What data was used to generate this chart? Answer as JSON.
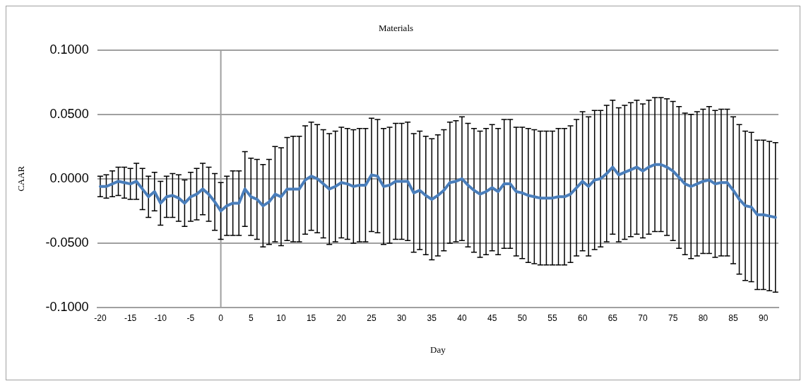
{
  "chart_data": {
    "type": "line",
    "title": "Materials",
    "xlabel": "Day",
    "ylabel": "CAAR",
    "x": [
      -20,
      -19,
      -18,
      -17,
      -16,
      -15,
      -14,
      -13,
      -12,
      -11,
      -10,
      -9,
      -8,
      -7,
      -6,
      -5,
      -4,
      -3,
      -2,
      -1,
      0,
      1,
      2,
      3,
      4,
      5,
      6,
      7,
      8,
      9,
      10,
      11,
      12,
      13,
      14,
      15,
      16,
      17,
      18,
      19,
      20,
      21,
      22,
      23,
      24,
      25,
      26,
      27,
      28,
      29,
      30,
      31,
      32,
      33,
      34,
      35,
      36,
      37,
      38,
      39,
      40,
      41,
      42,
      43,
      44,
      45,
      46,
      47,
      48,
      49,
      50,
      51,
      52,
      53,
      54,
      55,
      56,
      57,
      58,
      59,
      60,
      61,
      62,
      63,
      64,
      65,
      66,
      67,
      68,
      69,
      70,
      71,
      72,
      73,
      74,
      75,
      76,
      77,
      78,
      79,
      80,
      81,
      82,
      83,
      84,
      85,
      86,
      87,
      88,
      89,
      90,
      91,
      92
    ],
    "series": [
      {
        "color": "#4a7ebb",
        "values": [
          -0.006,
          -0.006,
          -0.004,
          -0.002,
          -0.003,
          -0.004,
          -0.002,
          -0.008,
          -0.014,
          -0.01,
          -0.019,
          -0.014,
          -0.013,
          -0.015,
          -0.019,
          -0.014,
          -0.012,
          -0.008,
          -0.012,
          -0.018,
          -0.025,
          -0.021,
          -0.019,
          -0.019,
          -0.008,
          -0.014,
          -0.016,
          -0.021,
          -0.018,
          -0.012,
          -0.014,
          -0.008,
          -0.008,
          -0.008,
          -0.001,
          0.002,
          0.0,
          -0.004,
          -0.008,
          -0.006,
          -0.003,
          -0.004,
          -0.006,
          -0.005,
          -0.005,
          0.003,
          0.002,
          -0.006,
          -0.005,
          -0.002,
          -0.002,
          -0.002,
          -0.011,
          -0.009,
          -0.013,
          -0.016,
          -0.013,
          -0.009,
          -0.003,
          -0.002,
          0.0,
          -0.005,
          -0.009,
          -0.012,
          -0.01,
          -0.007,
          -0.01,
          -0.004,
          -0.004,
          -0.01,
          -0.011,
          -0.013,
          -0.014,
          -0.015,
          -0.015,
          -0.015,
          -0.014,
          -0.014,
          -0.012,
          -0.007,
          -0.002,
          -0.006,
          -0.001,
          0.0,
          0.004,
          0.009,
          0.003,
          0.005,
          0.007,
          0.009,
          0.006,
          0.009,
          0.011,
          0.011,
          0.009,
          0.006,
          0.001,
          -0.004,
          -0.006,
          -0.004,
          -0.002,
          -0.001,
          -0.004,
          -0.003,
          -0.003,
          -0.009,
          -0.016,
          -0.021,
          -0.022,
          -0.028,
          -0.028,
          -0.029,
          -0.03
        ],
        "errors": [
          0.008,
          0.009,
          0.01,
          0.011,
          0.012,
          0.012,
          0.014,
          0.016,
          0.016,
          0.015,
          0.017,
          0.016,
          0.017,
          0.018,
          0.018,
          0.019,
          0.02,
          0.02,
          0.021,
          0.022,
          0.022,
          0.023,
          0.025,
          0.025,
          0.029,
          0.03,
          0.031,
          0.032,
          0.033,
          0.037,
          0.038,
          0.04,
          0.041,
          0.041,
          0.042,
          0.042,
          0.042,
          0.042,
          0.043,
          0.043,
          0.043,
          0.043,
          0.044,
          0.044,
          0.044,
          0.044,
          0.044,
          0.045,
          0.045,
          0.045,
          0.045,
          0.046,
          0.046,
          0.046,
          0.046,
          0.047,
          0.047,
          0.047,
          0.047,
          0.047,
          0.048,
          0.048,
          0.048,
          0.049,
          0.049,
          0.049,
          0.049,
          0.05,
          0.05,
          0.05,
          0.051,
          0.052,
          0.052,
          0.052,
          0.052,
          0.052,
          0.053,
          0.053,
          0.053,
          0.053,
          0.054,
          0.054,
          0.054,
          0.053,
          0.053,
          0.052,
          0.052,
          0.052,
          0.052,
          0.052,
          0.052,
          0.052,
          0.052,
          0.052,
          0.053,
          0.054,
          0.055,
          0.055,
          0.056,
          0.056,
          0.056,
          0.057,
          0.057,
          0.057,
          0.057,
          0.057,
          0.058,
          0.058,
          0.058,
          0.058,
          0.058,
          0.058,
          0.058
        ]
      }
    ],
    "xlim": [
      -20.5,
      92.5
    ],
    "xticks": [
      -20,
      -15,
      -10,
      -5,
      0,
      5,
      10,
      15,
      20,
      25,
      30,
      35,
      40,
      45,
      50,
      55,
      60,
      65,
      70,
      75,
      80,
      85,
      90
    ],
    "ylim": [
      -0.1,
      0.1
    ],
    "yticks": [
      {
        "value": -0.1,
        "label": "-0.1000"
      },
      {
        "value": -0.05,
        "label": "-0.0500"
      },
      {
        "value": 0,
        "label": "0.0000"
      },
      {
        "value": 0.05,
        "label": "0.0500"
      },
      {
        "value": 0.1,
        "label": "0.1000"
      }
    ],
    "grid": "y",
    "marker": "none",
    "line_style": "solid",
    "ref_lines": [
      {
        "axis": "x",
        "value": 0,
        "color": "#a0a0a0"
      }
    ]
  }
}
